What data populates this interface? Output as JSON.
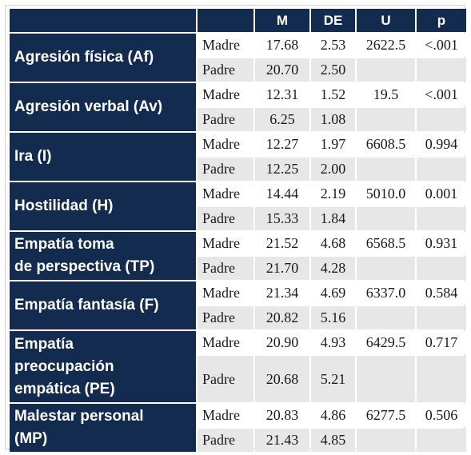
{
  "table": {
    "headers": [
      "",
      "",
      "M",
      "DE",
      "U",
      "p"
    ],
    "variables": [
      {
        "label_lines": [
          "Agresión física (Af)"
        ],
        "rows": [
          {
            "grupo": "Madre",
            "M": "17.68",
            "DE": "2.53",
            "U": "2622.5",
            "p": "<.001"
          },
          {
            "grupo": "Padre",
            "M": "20.70",
            "DE": "2.50",
            "U": "",
            "p": ""
          }
        ]
      },
      {
        "label_lines": [
          "Agresión verbal (Av)"
        ],
        "rows": [
          {
            "grupo": "Madre",
            "M": "12.31",
            "DE": "1.52",
            "U": "19.5",
            "p": "<.001"
          },
          {
            "grupo": "Padre",
            "M": "6.25",
            "DE": "1.08",
            "U": "",
            "p": ""
          }
        ]
      },
      {
        "label_lines": [
          "Ira (I)"
        ],
        "rows": [
          {
            "grupo": "Madre",
            "M": "12.27",
            "DE": "1.97",
            "U": "6608.5",
            "p": "0.994"
          },
          {
            "grupo": "Padre",
            "M": "12.25",
            "DE": "2.00",
            "U": "",
            "p": ""
          }
        ]
      },
      {
        "label_lines": [
          "Hostilidad (H)"
        ],
        "rows": [
          {
            "grupo": "Madre",
            "M": "14.44",
            "DE": "2.19",
            "U": "5010.0",
            "p": "0.001"
          },
          {
            "grupo": "Padre",
            "M": "15.33",
            "DE": "1.84",
            "U": "",
            "p": ""
          }
        ]
      },
      {
        "label_lines": [
          "Empatía toma",
          "de perspectiva (TP)"
        ],
        "rows": [
          {
            "grupo": "Madre",
            "M": "21.52",
            "DE": "4.68",
            "U": "6568.5",
            "p": "0.931"
          },
          {
            "grupo": "Padre",
            "M": "21.70",
            "DE": "4.28",
            "U": "",
            "p": ""
          }
        ]
      },
      {
        "label_lines": [
          "Empatía fantasía (F)"
        ],
        "rows": [
          {
            "grupo": "Madre",
            "M": "21.34",
            "DE": "4.69",
            "U": "6337.0",
            "p": "0.584"
          },
          {
            "grupo": "Padre",
            "M": "20.82",
            "DE": "5.16",
            "U": "",
            "p": ""
          }
        ]
      },
      {
        "label_lines": [
          "Empatía",
          "preocupación",
          "empática (PE)"
        ],
        "rows": [
          {
            "grupo": "Madre",
            "M": "20.90",
            "DE": "4.93",
            "U": "6429.5",
            "p": "0.717"
          },
          {
            "grupo": "Padre",
            "M": "20.68",
            "DE": "5.21",
            "U": "",
            "p": ""
          }
        ]
      },
      {
        "label_lines": [
          "Malestar personal",
          "(MP)"
        ],
        "rows": [
          {
            "grupo": "Madre",
            "M": "20.83",
            "DE": "4.86",
            "U": "6277.5",
            "p": "0.506"
          },
          {
            "grupo": "Padre",
            "M": "21.43",
            "DE": "4.85",
            "U": "",
            "p": ""
          }
        ]
      }
    ]
  },
  "colors": {
    "header_navy": "#132b4f",
    "row_shade": "#e7e7e7",
    "row_white": "#ffffff"
  }
}
